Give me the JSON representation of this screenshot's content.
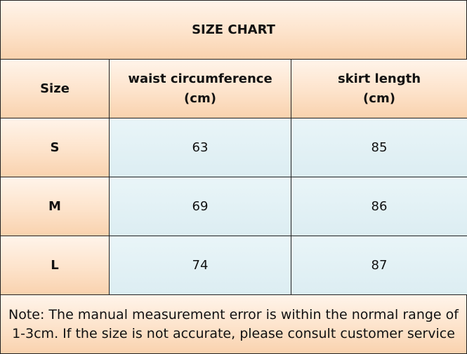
{
  "table": {
    "title": "SIZE CHART",
    "header": [
      [
        "Size"
      ],
      [
        "waist circumference",
        "(cm)"
      ],
      [
        "skirt length",
        "(cm)"
      ]
    ],
    "rows": [
      [
        "S",
        63,
        85
      ],
      [
        "M",
        69,
        86
      ],
      [
        "L",
        74,
        87
      ]
    ],
    "note": "Note: The manual measurement error is within the normal range of 1-3cm. If the size is not accurate, please consult customer service"
  }
}
